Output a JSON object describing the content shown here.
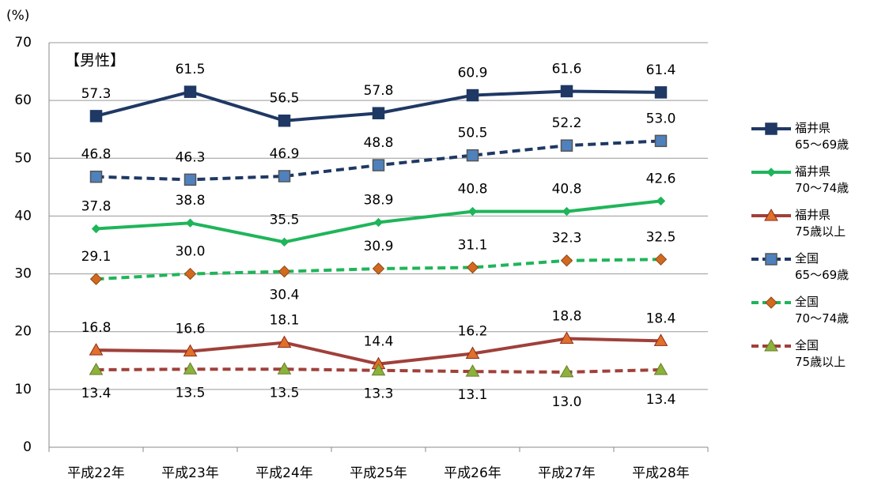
{
  "chart_data": {
    "type": "line",
    "unit_label": "(%)",
    "annotation": "【男性】",
    "categories": [
      "平成22年",
      "平成23年",
      "平成24年",
      "平成25年",
      "平成26年",
      "平成27年",
      "平成28年"
    ],
    "ylim": [
      0,
      70
    ],
    "yticks": [
      0,
      10,
      20,
      30,
      40,
      50,
      60,
      70
    ],
    "grid": true,
    "legend": "right",
    "series": [
      {
        "name": "福井県\n65〜69歳",
        "color": "#1f3864",
        "dashed": false,
        "marker": "square",
        "marker_fill": "#1f3864",
        "values": [
          57.3,
          61.5,
          56.5,
          57.8,
          60.9,
          61.6,
          61.4
        ],
        "value_labels": [
          "57.3",
          "61.5",
          "56.5",
          "57.8",
          "60.9",
          "61.6",
          "61.4"
        ]
      },
      {
        "name": "福井県\n70〜74歳",
        "color": "#1fb55a",
        "dashed": false,
        "marker": "diamond",
        "marker_fill": "#1fb55a",
        "values": [
          37.8,
          38.8,
          35.5,
          38.9,
          40.8,
          40.8,
          42.6
        ],
        "value_labels": [
          "37.8",
          "38.8",
          "35.5",
          "38.9",
          "40.8",
          "40.8",
          "42.6"
        ]
      },
      {
        "name": "福井県\n75歳以上",
        "color": "#a0403a",
        "dashed": false,
        "marker": "triangle",
        "marker_fill": "#e0702a",
        "values": [
          16.8,
          16.6,
          18.1,
          14.4,
          16.2,
          18.8,
          18.4
        ],
        "value_labels": [
          "16.8",
          "16.6",
          "18.1",
          "14.4",
          "16.2",
          "18.8",
          "18.4"
        ]
      },
      {
        "name": "全国\n65〜69歳",
        "color": "#1f3864",
        "dashed": true,
        "marker": "square",
        "marker_fill": "#4f81bd",
        "values": [
          46.8,
          46.3,
          46.9,
          48.8,
          50.5,
          52.2,
          53.0
        ],
        "value_labels": [
          "46.8",
          "46.3",
          "46.9",
          "48.8",
          "50.5",
          "52.2",
          "53.0"
        ]
      },
      {
        "name": "全国\n70〜74歳",
        "color": "#1fb55a",
        "dashed": true,
        "marker": "diamond",
        "marker_fill": "#d2691e",
        "values": [
          29.1,
          30.0,
          30.4,
          30.9,
          31.1,
          32.3,
          32.5
        ],
        "value_labels": [
          "29.1",
          "30.0",
          "30.4",
          "30.9",
          "31.1",
          "32.3",
          "32.5"
        ]
      },
      {
        "name": "全国\n75歳以上",
        "color": "#a0403a",
        "dashed": true,
        "marker": "triangle",
        "marker_fill": "#8bb33b",
        "values": [
          13.4,
          13.5,
          13.5,
          13.3,
          13.1,
          13.0,
          13.4
        ],
        "value_labels": [
          "13.4",
          "13.5",
          "13.5",
          "13.3",
          "13.1",
          "13.0",
          "13.4"
        ]
      }
    ]
  }
}
